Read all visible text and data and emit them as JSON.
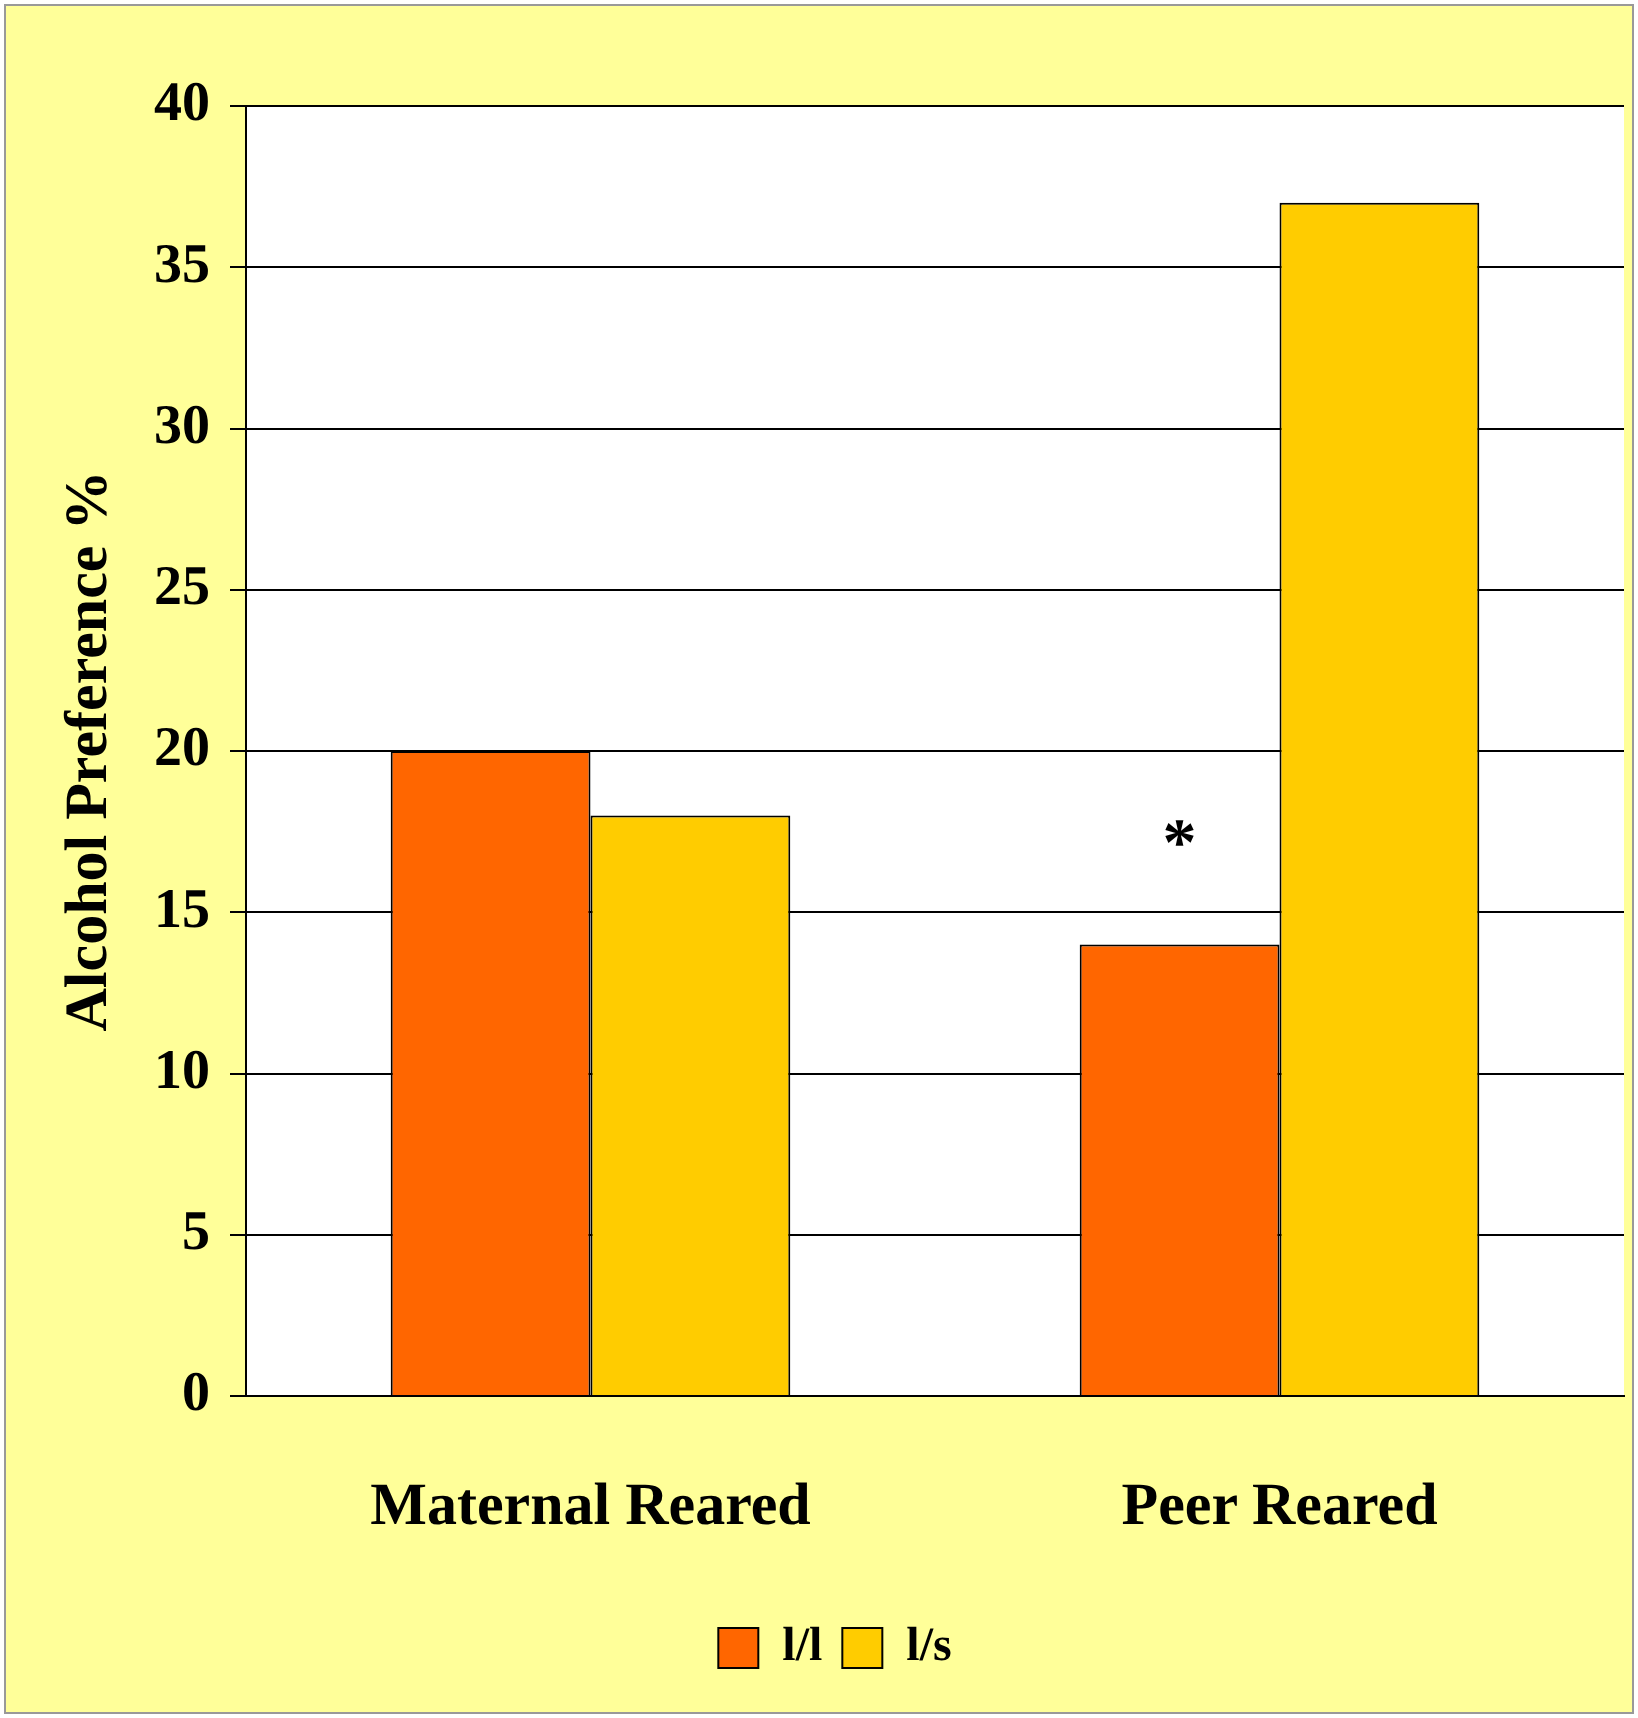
{
  "chart_data": {
    "type": "bar",
    "ylabel": "Alcohol Preference %",
    "categories": [
      "Maternal Reared",
      "Peer Reared"
    ],
    "series": [
      {
        "name": "l/l",
        "color": "#ff6600",
        "values": [
          20,
          14
        ]
      },
      {
        "name": "l/s",
        "color": "#ffcc00",
        "values": [
          18,
          37
        ]
      }
    ],
    "ylim": [
      0,
      40
    ],
    "yticks": [
      0,
      5,
      10,
      15,
      20,
      25,
      30,
      35,
      40
    ],
    "grid": "y",
    "legend": "bottom",
    "annotations": [
      {
        "text": "*",
        "x": "Peer Reared",
        "y": 17
      }
    ]
  }
}
